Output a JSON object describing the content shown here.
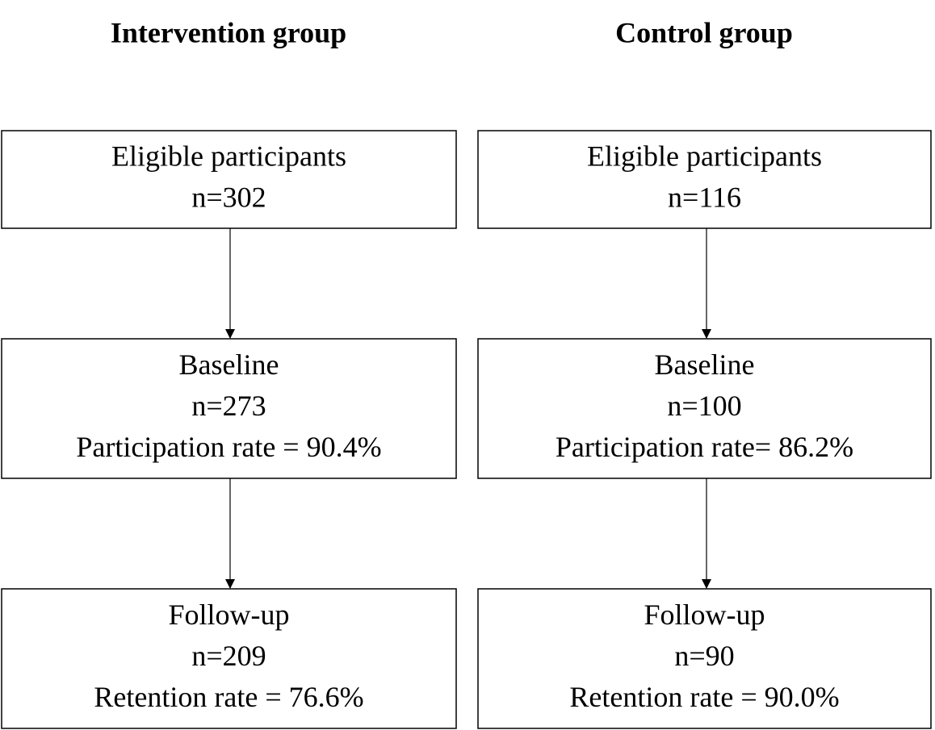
{
  "groups": [
    {
      "title": "Intervention group",
      "nodes": [
        {
          "lines": [
            "Eligible participants",
            "n=302"
          ]
        },
        {
          "lines": [
            "Baseline",
            "n=273",
            "Participation rate = 90.4%"
          ]
        },
        {
          "lines": [
            "Follow-up",
            "n=209",
            "Retention rate = 76.6%"
          ]
        }
      ]
    },
    {
      "title": "Control group",
      "nodes": [
        {
          "lines": [
            "Eligible participants",
            "n=116"
          ]
        },
        {
          "lines": [
            "Baseline",
            "n=100",
            "Participation rate= 86.2%"
          ]
        },
        {
          "lines": [
            "Follow-up",
            "n=90",
            "Retention rate = 90.0%"
          ]
        }
      ]
    }
  ]
}
